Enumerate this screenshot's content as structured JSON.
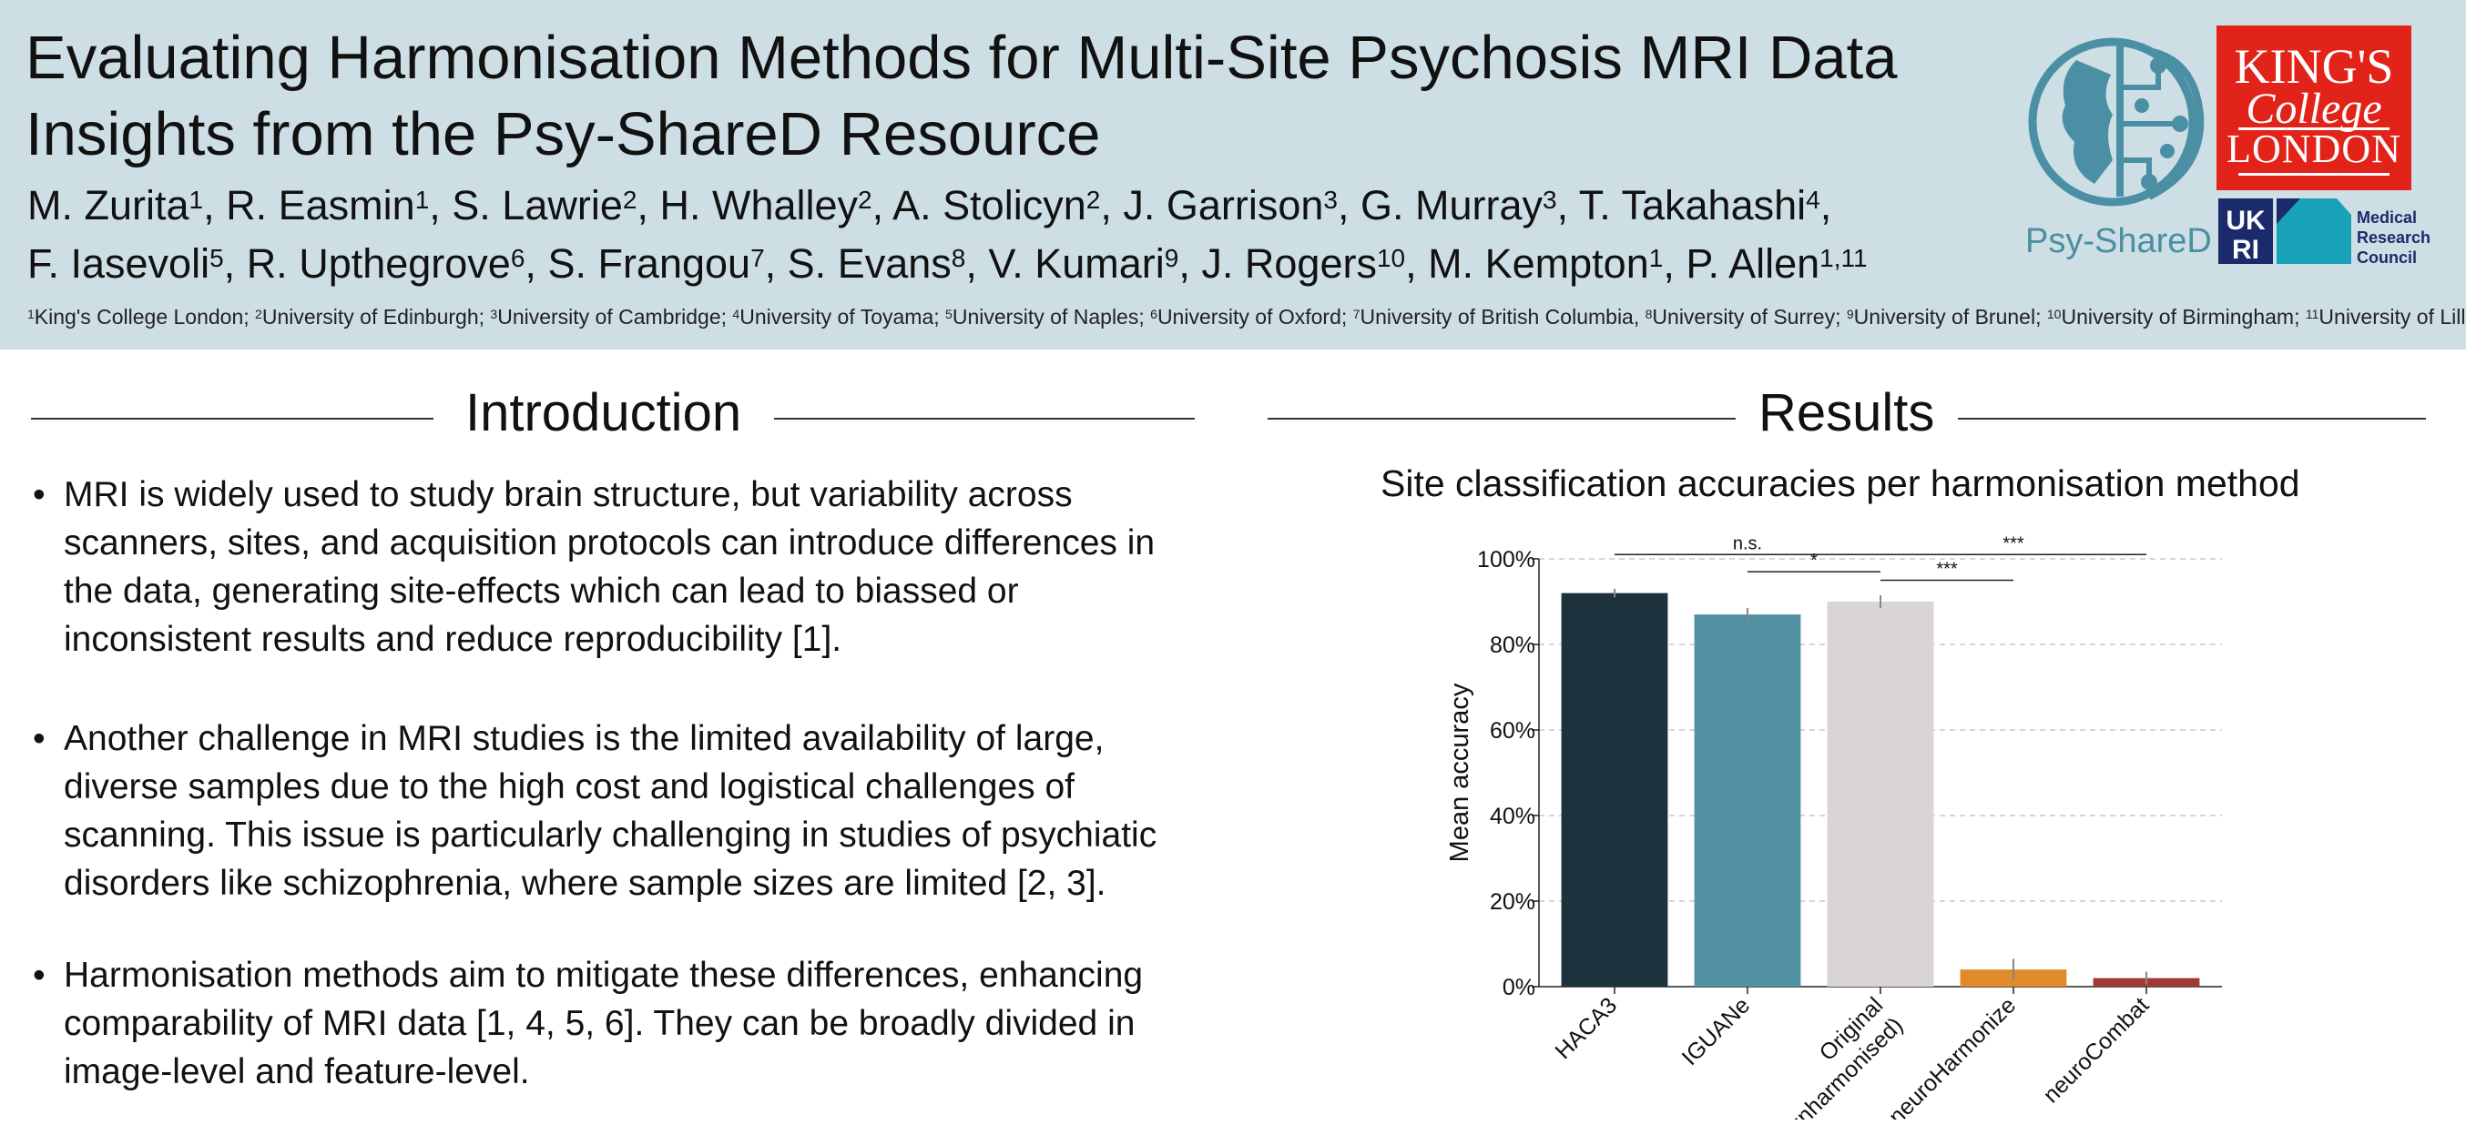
{
  "header": {
    "title_line1": "Evaluating Harmonisation Methods for Multi-Site Psychosis MRI Data",
    "title_line2": "Insights from the Psy-ShareD Resource",
    "authors_line1": [
      {
        "name": "M. Zurita",
        "sup": "1",
        "sep": ", "
      },
      {
        "name": "R. Easmin",
        "sup": "1",
        "sep": ", "
      },
      {
        "name": "S. Lawrie",
        "sup": "2",
        "sep": ", "
      },
      {
        "name": "H. Whalley",
        "sup": "2",
        "sep": ", "
      },
      {
        "name": "A. Stolicyn",
        "sup": "2",
        "sep": ", "
      },
      {
        "name": "J. Garrison",
        "sup": "3",
        "sep": ", "
      },
      {
        "name": "G. Murray",
        "sup": "3",
        "sep": ", "
      },
      {
        "name": "T. Takahashi",
        "sup": "4",
        "sep": ","
      }
    ],
    "authors_line2": [
      {
        "name": "F. Iasevoli",
        "sup": "5",
        "sep": ", "
      },
      {
        "name": "R. Upthegrove",
        "sup": "6",
        "sep": ", "
      },
      {
        "name": "S. Frangou",
        "sup": "7",
        "sep": ", "
      },
      {
        "name": "S. Evans",
        "sup": "8",
        "sep": ", "
      },
      {
        "name": "V. Kumari",
        "sup": "9",
        "sep": ", "
      },
      {
        "name": "J. Rogers",
        "sup": "10",
        "sep": ", "
      },
      {
        "name": "M. Kempton",
        "sup": "1",
        "sep": ", "
      },
      {
        "name": "P. Allen",
        "sup": "1,11",
        "sep": ""
      }
    ],
    "affiliations": [
      {
        "sup": "1",
        "name": "King's College London",
        "sep": "; "
      },
      {
        "sup": "2",
        "name": "University of Edinburgh",
        "sep": "; "
      },
      {
        "sup": "3",
        "name": "University of Cambridge",
        "sep": "; "
      },
      {
        "sup": "4",
        "name": "University of Toyama",
        "sep": "; "
      },
      {
        "sup": "5",
        "name": "University of Naples",
        "sep": "; "
      },
      {
        "sup": "6",
        "name": "University of Oxford",
        "sep": "; "
      },
      {
        "sup": "7",
        "name": "University of British Columbia",
        "sep": ", "
      },
      {
        "sup": "8",
        "name": "University of Surrey",
        "sep": "; "
      },
      {
        "sup": "9",
        "name": "University of Brunel",
        "sep": "; "
      },
      {
        "sup": "10",
        "name": "University of Birmingham",
        "sep": "; "
      },
      {
        "sup": "11",
        "name": "University of Lille",
        "sep": ""
      }
    ],
    "logos": {
      "psy_sharedd_label": "Psy-ShareD",
      "kcl_line1": "KING'S",
      "kcl_line2": "College",
      "kcl_line3": "LONDON",
      "ukri_label": "UK RI",
      "mrc_line1": "Medical",
      "mrc_line2": "Research",
      "mrc_line3": "Council"
    }
  },
  "introduction": {
    "heading": "Introduction",
    "bullet_symbol": "•",
    "bullets": [
      "MRI is widely used to study brain structure, but variability across scanners, sites, and acquisition protocols can introduce differences in the data, generating site-effects which can lead to biassed or inconsistent results and reduce reproducibility [1].",
      "Another challenge in MRI studies is the limited availability of large, diverse samples due to the high cost and logistical challenges of scanning. This issue is particularly challenging in studies of psychiatic disorders like schizophrenia, where sample sizes are limited [2, 3].",
      "Harmonisation methods aim to mitigate these differences, enhancing comparability of MRI data [1, 4, 5, 6]. They can be broadly divided in image-level and feature-level."
    ]
  },
  "results": {
    "heading": "Results"
  },
  "chart_data": {
    "type": "bar",
    "title": "Site classification accuracies per harmonisation method",
    "xlabel": "",
    "ylabel": "Mean accuracy",
    "ylim": [
      0,
      100
    ],
    "yticks": [
      "0%",
      "20%",
      "40%",
      "60%",
      "80%",
      "100%"
    ],
    "ytick_values": [
      0,
      20,
      40,
      60,
      80,
      100
    ],
    "grid": true,
    "categories": [
      "HACA3",
      "IGUANe",
      "Original (unharmonised)",
      "neuroHarmonize",
      "neuroCombat"
    ],
    "category_labels": [
      [
        "HACA3"
      ],
      [
        "IGUANe"
      ],
      [
        "Original",
        "(unharmonised)"
      ],
      [
        "neuroHarmonize"
      ],
      [
        "neuroCombat"
      ]
    ],
    "values": [
      92,
      87,
      90,
      4,
      2
    ],
    "errors": [
      1,
      1.5,
      1.5,
      2.5,
      1.5
    ],
    "colors": [
      "#1c323d",
      "#5290a3",
      "#d8d4d8",
      "#e08a28",
      "#a13a36"
    ],
    "significance": [
      {
        "from": 0,
        "to": 2,
        "label": "n.s.",
        "level": 99
      },
      {
        "from": 1,
        "to": 2,
        "label": "*",
        "level": 95
      },
      {
        "from": 2,
        "to": 4,
        "label": "***",
        "level": 99
      },
      {
        "from": 2,
        "to": 3,
        "label": "***",
        "level": 93
      }
    ]
  }
}
